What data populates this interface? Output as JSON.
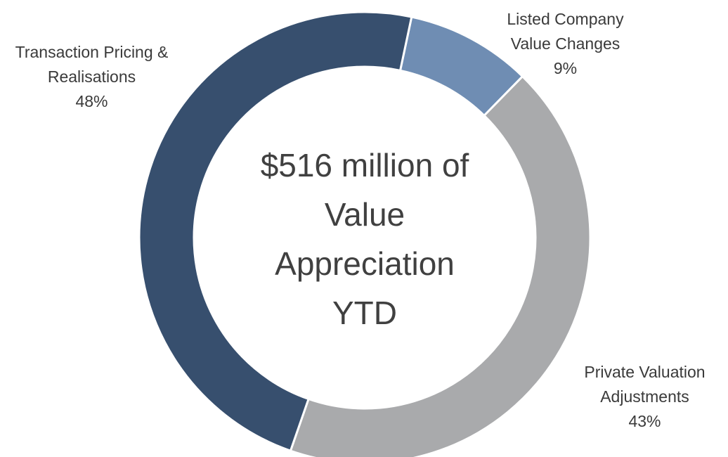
{
  "chart_data": {
    "type": "donut",
    "center_label": "$516 million of Value Appreciation YTD",
    "categories": [
      "Listed Company Value Changes",
      "Private Valuation Adjustments",
      "Transaction Pricing & Realisations"
    ],
    "values": [
      9,
      43,
      48
    ],
    "value_labels": [
      "9%",
      "43%",
      "48%"
    ],
    "colors": [
      "#6f8db3",
      "#a9aaac",
      "#374f6e"
    ]
  }
}
